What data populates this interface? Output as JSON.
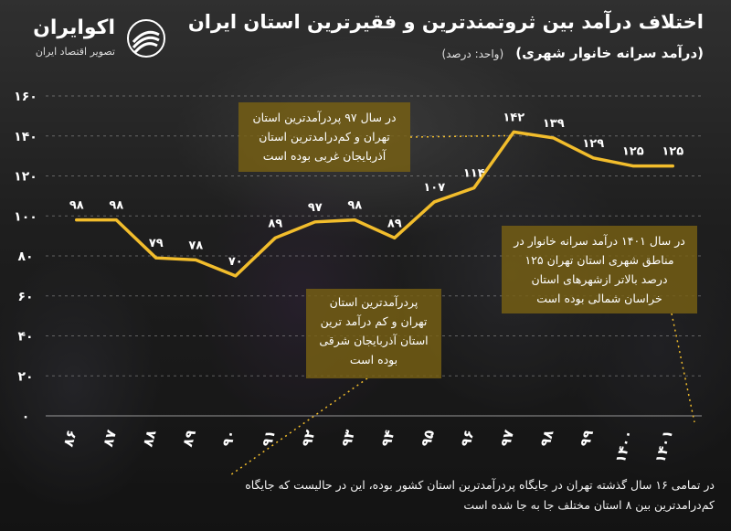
{
  "brand": {
    "name": "اکوایران",
    "tagline": "تصویر اقتصاد ایران",
    "icon": "stacked-arcs-logo-icon"
  },
  "header": {
    "title": "اختلاف درآمد بین ثروتمندترین و فقیرترین استان ایران",
    "subtitle": "(درآمد سرانه خانوار شهری)",
    "unit": "(واحد: درصد)"
  },
  "colors": {
    "line": "#f2bd2c",
    "axis_text": "#ffffff",
    "note_background": "#7a6014",
    "gridline": "#ffffff"
  },
  "chart_data": {
    "type": "line",
    "x": [
      "۸۶",
      "۸۷",
      "۸۸",
      "۸۹",
      "۹۰",
      "۹۱",
      "۹۲",
      "۹۳",
      "۹۴",
      "۹۵",
      "۹۶",
      "۹۷",
      "۹۸",
      "۹۹",
      "۱۴۰۰",
      "۱۴۰۱"
    ],
    "series": [
      {
        "values": [
          98,
          98,
          79,
          78,
          70,
          89,
          97,
          98,
          89,
          107,
          114,
          142,
          139,
          129,
          125,
          125
        ],
        "value_labels": [
          "۹۸",
          "۹۸",
          "۷۹",
          "۷۸",
          "۷۰",
          "۸۹",
          "۹۷",
          "۹۸",
          "۸۹",
          "۱۰۷",
          "۱۱۴",
          "۱۴۲",
          "۱۳۹",
          "۱۲۹",
          "۱۲۵",
          "۱۲۵"
        ]
      }
    ],
    "ylim": [
      0,
      160
    ],
    "yticks": [
      0,
      20,
      40,
      60,
      80,
      100,
      120,
      140,
      160
    ],
    "ytick_labels": [
      "۰",
      "۲۰",
      "۴۰",
      "۶۰",
      "۸۰",
      "۱۰۰",
      "۱۲۰",
      "۱۴۰",
      "۱۶۰"
    ],
    "grid": "horizontal-dashed",
    "legend": "none",
    "xlabel": "",
    "ylabel": "",
    "annotations": [
      {
        "id": "note1",
        "text": "در سال ۹۷ پردرآمدترین استان تهران و کم‌درامدترین استان آذربایجان غربی بوده است",
        "points_to_x": "۹۷"
      },
      {
        "id": "note2",
        "text": "پردرآمدترین استان تهران و کم درآمد ترین استان آذربایجان شرقی بوده است",
        "points_to_x": "۹۰"
      },
      {
        "id": "note3",
        "text": "در سال ۱۴۰۱ درآمد سرانه خانوار در مناطق شهری استان تهران ۱۲۵ درصد بالاتر ازشهرهای استان خراسان شمالی بوده است",
        "points_to_x": "۱۴۰۱"
      }
    ]
  },
  "footnote": "در تمامی ۱۶ سال گذشته تهران در جایگاه پردرآمدترین استان کشور بوده، این در حالیست که جایگاه کم‌درامدترین بین ۸ استان مختلف جا به جا شده است"
}
